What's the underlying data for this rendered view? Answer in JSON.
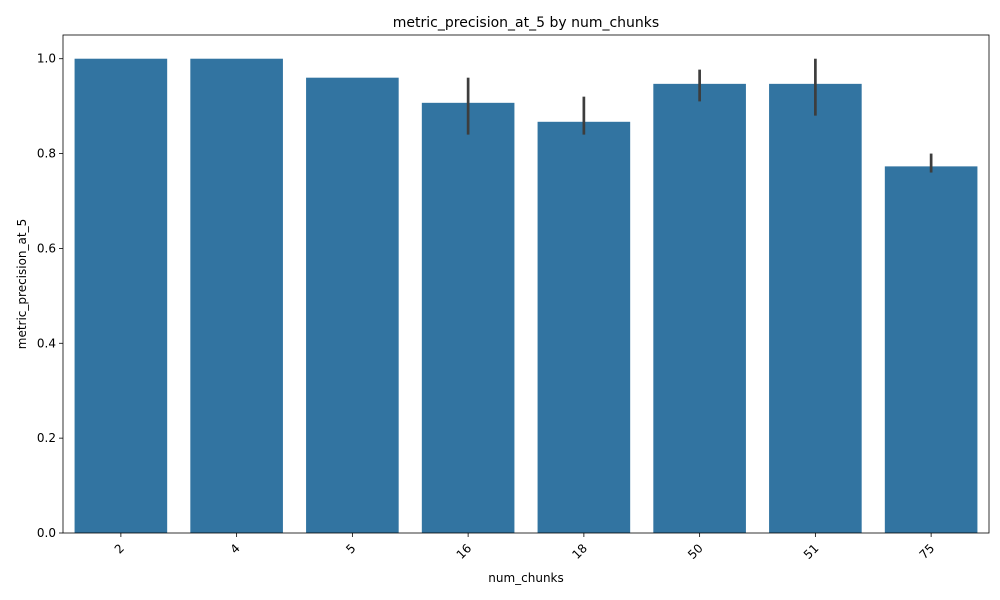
{
  "chart_data": {
    "type": "bar",
    "title": "metric_precision_at_5 by num_chunks",
    "xlabel": "num_chunks",
    "ylabel": "metric_precision_at_5",
    "categories": [
      "2",
      "4",
      "5",
      "16",
      "18",
      "50",
      "51",
      "75"
    ],
    "values": [
      1.0,
      1.0,
      0.96,
      0.907,
      0.867,
      0.947,
      0.947,
      0.773
    ],
    "error_low": [
      null,
      null,
      null,
      0.84,
      0.84,
      0.91,
      0.88,
      0.76
    ],
    "error_high": [
      null,
      null,
      null,
      0.96,
      0.92,
      0.977,
      1.0,
      0.8
    ],
    "ylim": [
      0,
      1.05
    ],
    "yticks": [
      "0.0",
      "0.2",
      "0.4",
      "0.6",
      "0.8",
      "1.0"
    ],
    "bar_color": "#3274a1",
    "error_color": "#3d3d3d",
    "grid": false,
    "xtick_rotation": 45
  }
}
